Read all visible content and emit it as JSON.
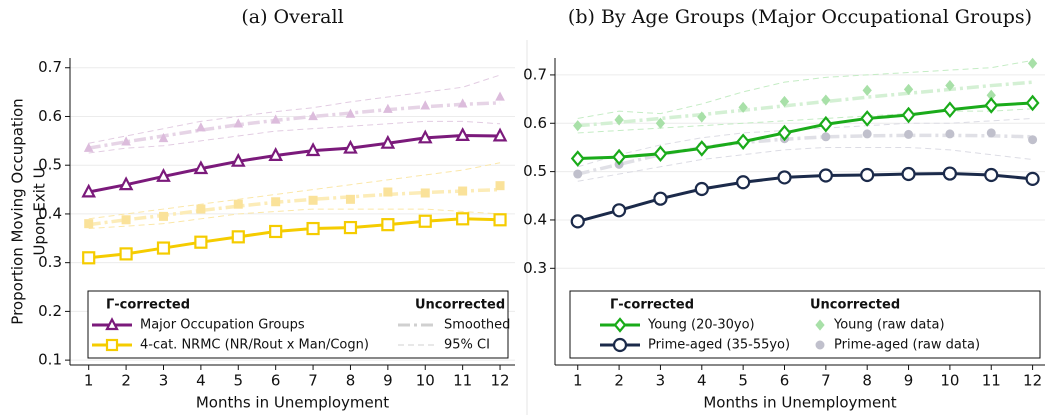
{
  "chart_data": [
    {
      "type": "line",
      "title": "(a) Overall",
      "ylabel": [
        "Proportion Moving Occupation",
        "Upon Exit U"
      ],
      "xlabel": "Months in Unemployment",
      "x": [
        1,
        2,
        3,
        4,
        5,
        6,
        7,
        8,
        9,
        10,
        11,
        12
      ],
      "xlim": [
        0.5,
        12.4
      ],
      "xticks": [
        1,
        2,
        3,
        4,
        5,
        6,
        7,
        8,
        9,
        10,
        11,
        12
      ],
      "ylim": [
        0.09,
        0.72
      ],
      "yticks": [
        0.1,
        0.2,
        0.3,
        0.4,
        0.5,
        0.6,
        0.7
      ],
      "grid": true,
      "legend": {
        "left_header": "Γ-corrected",
        "right_header": "Uncorrected",
        "entries": [
          "Smoothed",
          "95% CI"
        ]
      },
      "series": [
        {
          "style": "ci",
          "color": "#e2cce2",
          "values": [
            0.545,
            0.56,
            0.575,
            0.59,
            0.6,
            0.61,
            0.618,
            0.63,
            0.64,
            0.65,
            0.66,
            0.685
          ]
        },
        {
          "style": "ci",
          "color": "#e2cce2",
          "values": [
            0.525,
            0.535,
            0.54,
            0.55,
            0.56,
            0.57,
            0.575,
            0.58,
            0.585,
            0.59,
            0.59,
            0.585
          ]
        },
        {
          "style": "ci",
          "color": "#fbe7a8",
          "values": [
            0.39,
            0.4,
            0.41,
            0.42,
            0.43,
            0.44,
            0.45,
            0.46,
            0.47,
            0.48,
            0.49,
            0.505
          ]
        },
        {
          "style": "ci",
          "color": "#fbe7a8",
          "values": [
            0.37,
            0.375,
            0.38,
            0.39,
            0.4,
            0.405,
            0.41,
            0.41,
            0.41,
            0.41,
            0.405,
            0.4
          ]
        },
        {
          "style": "smoothed",
          "color": "#e6d4e6",
          "values": [
            0.535,
            0.548,
            0.56,
            0.572,
            0.583,
            0.592,
            0.6,
            0.607,
            0.614,
            0.62,
            0.625,
            0.628
          ]
        },
        {
          "style": "smoothed",
          "color": "#fcecb8",
          "values": [
            0.378,
            0.388,
            0.397,
            0.407,
            0.416,
            0.424,
            0.43,
            0.435,
            0.44,
            0.444,
            0.447,
            0.45
          ]
        },
        {
          "style": "markers",
          "marker": "triangle",
          "color": "#dcbcdc",
          "values": [
            0.535,
            0.548,
            0.555,
            0.577,
            0.585,
            0.593,
            0.6,
            0.605,
            0.615,
            0.622,
            0.626,
            0.64
          ]
        },
        {
          "style": "markers",
          "marker": "square",
          "color": "#fae29a",
          "values": [
            0.38,
            0.388,
            0.395,
            0.41,
            0.42,
            0.425,
            0.428,
            0.43,
            0.445,
            0.443,
            0.447,
            0.458
          ]
        },
        {
          "name": "Major Occupation Groups",
          "style": "solid",
          "marker": "triangle",
          "color": "#7b1a7b",
          "values": [
            0.445,
            0.46,
            0.477,
            0.493,
            0.508,
            0.52,
            0.53,
            0.535,
            0.545,
            0.556,
            0.561,
            0.56
          ]
        },
        {
          "name": "4-cat. NRMC (NR/Rout x Man/Cogn)",
          "style": "solid",
          "marker": "square",
          "color": "#f5cc00",
          "values": [
            0.31,
            0.318,
            0.33,
            0.342,
            0.353,
            0.364,
            0.37,
            0.372,
            0.378,
            0.385,
            0.39,
            0.388
          ]
        }
      ]
    },
    {
      "type": "line",
      "title": "(b) By Age Groups (Major Occupational Groups)",
      "xlabel": "Months in Unemployment",
      "x": [
        1,
        2,
        3,
        4,
        5,
        6,
        7,
        8,
        9,
        10,
        11,
        12
      ],
      "xlim": [
        0.45,
        12.3
      ],
      "xticks": [
        1,
        2,
        3,
        4,
        5,
        6,
        7,
        8,
        9,
        10,
        11,
        12
      ],
      "ylim": [
        0.1,
        0.735
      ],
      "yticks": [
        0.3,
        0.4,
        0.5,
        0.6,
        0.7
      ],
      "grid": true,
      "legend": {
        "left_header": "Γ-corrected",
        "right_header": "Uncorrected"
      },
      "series": [
        {
          "style": "ci",
          "color": "#c4ecc4",
          "values": [
            0.61,
            0.625,
            0.62,
            0.64,
            0.665,
            0.685,
            0.695,
            0.7,
            0.705,
            0.71,
            0.715,
            0.73
          ]
        },
        {
          "style": "ci",
          "color": "#c4ecc4",
          "values": [
            0.58,
            0.585,
            0.59,
            0.595,
            0.6,
            0.605,
            0.61,
            0.615,
            0.62,
            0.625,
            0.625,
            0.63
          ]
        },
        {
          "style": "ci",
          "color": "#dcdce4",
          "values": [
            0.51,
            0.535,
            0.555,
            0.57,
            0.58,
            0.585,
            0.59,
            0.595,
            0.6,
            0.6,
            0.605,
            0.61
          ]
        },
        {
          "style": "ci",
          "color": "#dcdce4",
          "values": [
            0.48,
            0.495,
            0.51,
            0.525,
            0.535,
            0.545,
            0.55,
            0.55,
            0.55,
            0.545,
            0.535,
            0.525
          ]
        },
        {
          "style": "smoothed",
          "color": "#d4f0d4",
          "values": [
            0.595,
            0.602,
            0.61,
            0.618,
            0.627,
            0.636,
            0.645,
            0.654,
            0.662,
            0.67,
            0.678,
            0.685
          ]
        },
        {
          "style": "smoothed",
          "color": "#e0e0e6",
          "values": [
            0.495,
            0.515,
            0.535,
            0.55,
            0.56,
            0.567,
            0.572,
            0.574,
            0.575,
            0.575,
            0.574,
            0.572
          ]
        },
        {
          "name": "Young (raw data)",
          "style": "markers",
          "marker": "diamond",
          "color": "#a8e0a8",
          "values": [
            0.595,
            0.607,
            0.6,
            0.613,
            0.633,
            0.645,
            0.648,
            0.668,
            0.67,
            0.678,
            0.658,
            0.724
          ]
        },
        {
          "name": "Prime-aged (raw data)",
          "style": "markers",
          "marker": "circle",
          "color": "#c0c0cc",
          "values": [
            0.495,
            0.515,
            0.535,
            0.552,
            0.56,
            0.568,
            0.572,
            0.578,
            0.577,
            0.578,
            0.58,
            0.566
          ]
        },
        {
          "name": "Young (20-30yo)",
          "style": "solid",
          "marker": "diamond",
          "color": "#1aab1a",
          "values": [
            0.527,
            0.53,
            0.537,
            0.548,
            0.562,
            0.58,
            0.598,
            0.61,
            0.617,
            0.628,
            0.637,
            0.642
          ]
        },
        {
          "name": "Prime-aged (35-55yo)",
          "style": "solid",
          "marker": "circle",
          "color": "#1b2a4a",
          "values": [
            0.397,
            0.42,
            0.444,
            0.464,
            0.478,
            0.488,
            0.492,
            0.493,
            0.495,
            0.496,
            0.493,
            0.485
          ]
        }
      ]
    }
  ]
}
